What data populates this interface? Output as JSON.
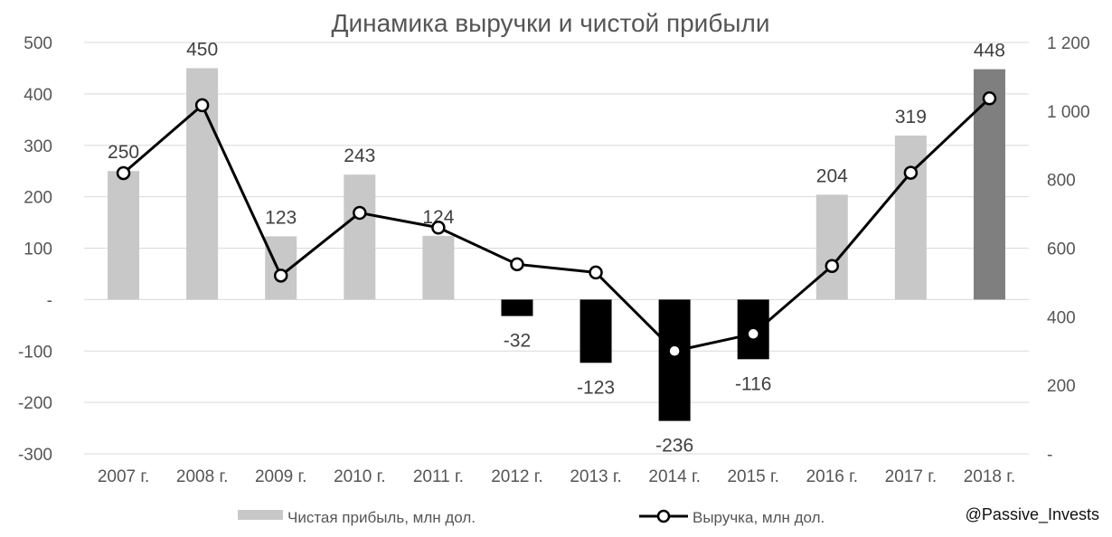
{
  "chart_data": {
    "type": "bar",
    "title": "Динамика выручки и чистой прибыли",
    "categories": [
      "2007 г.",
      "2008 г.",
      "2009 г.",
      "2010 г.",
      "2011 г.",
      "2012 г.",
      "2013 г.",
      "2014 г.",
      "2015 г.",
      "2016 г.",
      "2017 г.",
      "2018 г."
    ],
    "series": [
      {
        "name": "Чистая прибыль, млн дол.",
        "type": "bar",
        "axis": "left",
        "values": [
          250,
          450,
          123,
          243,
          124,
          -32,
          -123,
          -236,
          -116,
          204,
          319,
          448
        ],
        "labels": [
          "250",
          "450",
          "123",
          "243",
          "124",
          "-32",
          "-123",
          "-236",
          "-116",
          "204",
          "319",
          "448"
        ],
        "colors": {
          "positive": "#c8c8c8",
          "negative": "#000000",
          "highlight": "#7f7f7f"
        }
      },
      {
        "name": "Выручка, млн дол.",
        "type": "line",
        "axis": "right",
        "values": [
          819,
          1017,
          520,
          703,
          660,
          553,
          529,
          300,
          350,
          548,
          820,
          1037
        ],
        "colors": {
          "line": "#000000",
          "marker_fill": "#ffffff"
        }
      }
    ],
    "y_left": {
      "ylim": [
        -300,
        500
      ],
      "ticks": [
        "500",
        "400",
        "300",
        "200",
        "100",
        "-",
        "-100",
        "-200",
        "-300"
      ]
    },
    "y_right": {
      "ylim": [
        0,
        1200
      ],
      "ticks": [
        "1 200",
        "1 000",
        "800",
        "600",
        "400",
        "200",
        "-"
      ]
    },
    "grid": true,
    "legend": "bottom"
  },
  "watermark": "@Passive_Invests"
}
